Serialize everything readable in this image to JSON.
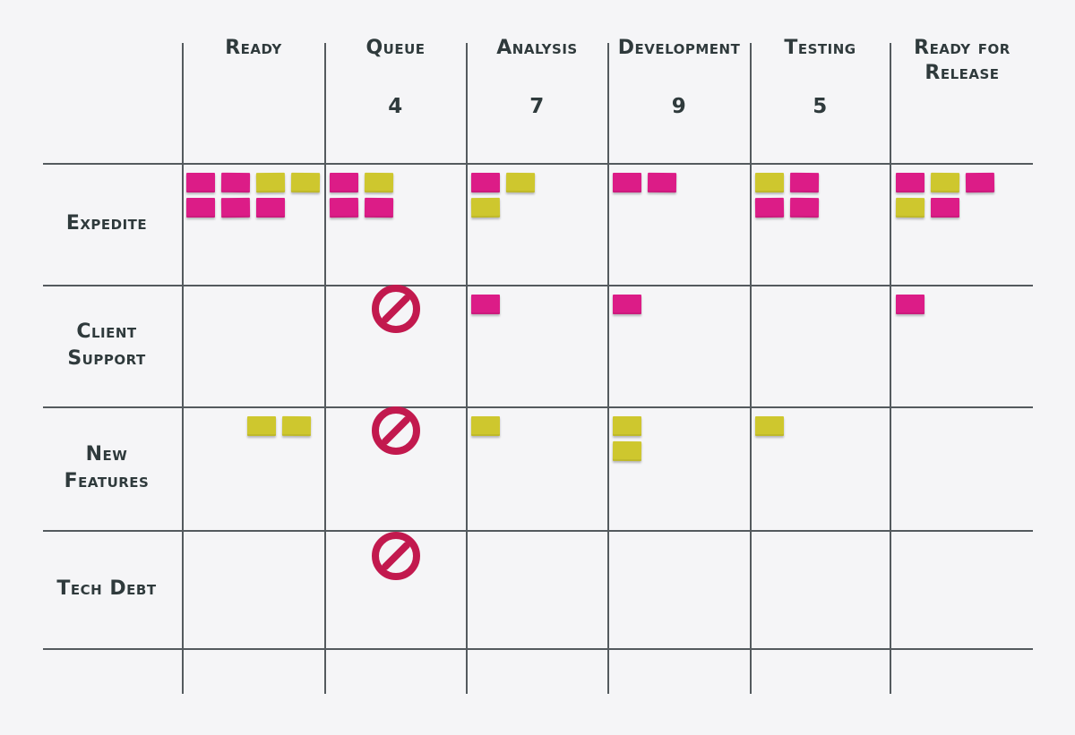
{
  "board": {
    "columns": [
      {
        "id": "ready",
        "label": "Ready",
        "wip": ""
      },
      {
        "id": "queue",
        "label": "Queue",
        "wip": "4"
      },
      {
        "id": "analysis",
        "label": "Analysis",
        "wip": "7"
      },
      {
        "id": "development",
        "label": "Development",
        "wip": "9"
      },
      {
        "id": "testing",
        "label": "Testing",
        "wip": "5"
      },
      {
        "id": "ready-for-release",
        "label": "Ready for\nRelease",
        "wip": ""
      }
    ],
    "rows": [
      {
        "id": "expedite",
        "label": "Expedite"
      },
      {
        "id": "client-support",
        "label": "Client\nSupport"
      },
      {
        "id": "new-features",
        "label": "New\nFeatures"
      },
      {
        "id": "tech-debt",
        "label": "Tech Debt"
      }
    ]
  },
  "cards": {
    "expedite_ready": [
      "pink",
      "pink",
      "yellow",
      "yellow",
      "pink",
      "pink",
      "pink"
    ],
    "expedite_queue": [
      "pink",
      "yellow",
      "pink",
      "pink"
    ],
    "expedite_analysis": [
      "pink",
      "yellow",
      "yellow"
    ],
    "expedite_development": [
      "pink",
      "pink"
    ],
    "expedite_testing": [
      "yellow",
      "pink",
      "pink",
      "pink"
    ],
    "expedite_ready_for_release": [
      "pink",
      "yellow",
      "pink",
      "yellow",
      "pink"
    ],
    "client_support_analysis": [
      "pink"
    ],
    "client_support_development": [
      "pink"
    ],
    "client_support_ready_for_release": [
      "pink"
    ],
    "new_features_ready": [
      "yellow",
      "yellow"
    ],
    "new_features_analysis": [
      "yellow"
    ],
    "new_features_development": [
      "yellow",
      "yellow"
    ],
    "new_features_testing": [
      "yellow"
    ]
  },
  "blocked_cells": [
    "client-support/queue",
    "new-features/queue",
    "tech-debt/queue"
  ],
  "icons": {
    "blocked": "no-entry-icon"
  },
  "colors": {
    "background": "#f5f5f7",
    "grid_line": "#545a5e",
    "text": "#2f3a3c",
    "card_pink": "#dc1c87",
    "card_yellow": "#cec72e",
    "no_entry": "#c2194e"
  }
}
